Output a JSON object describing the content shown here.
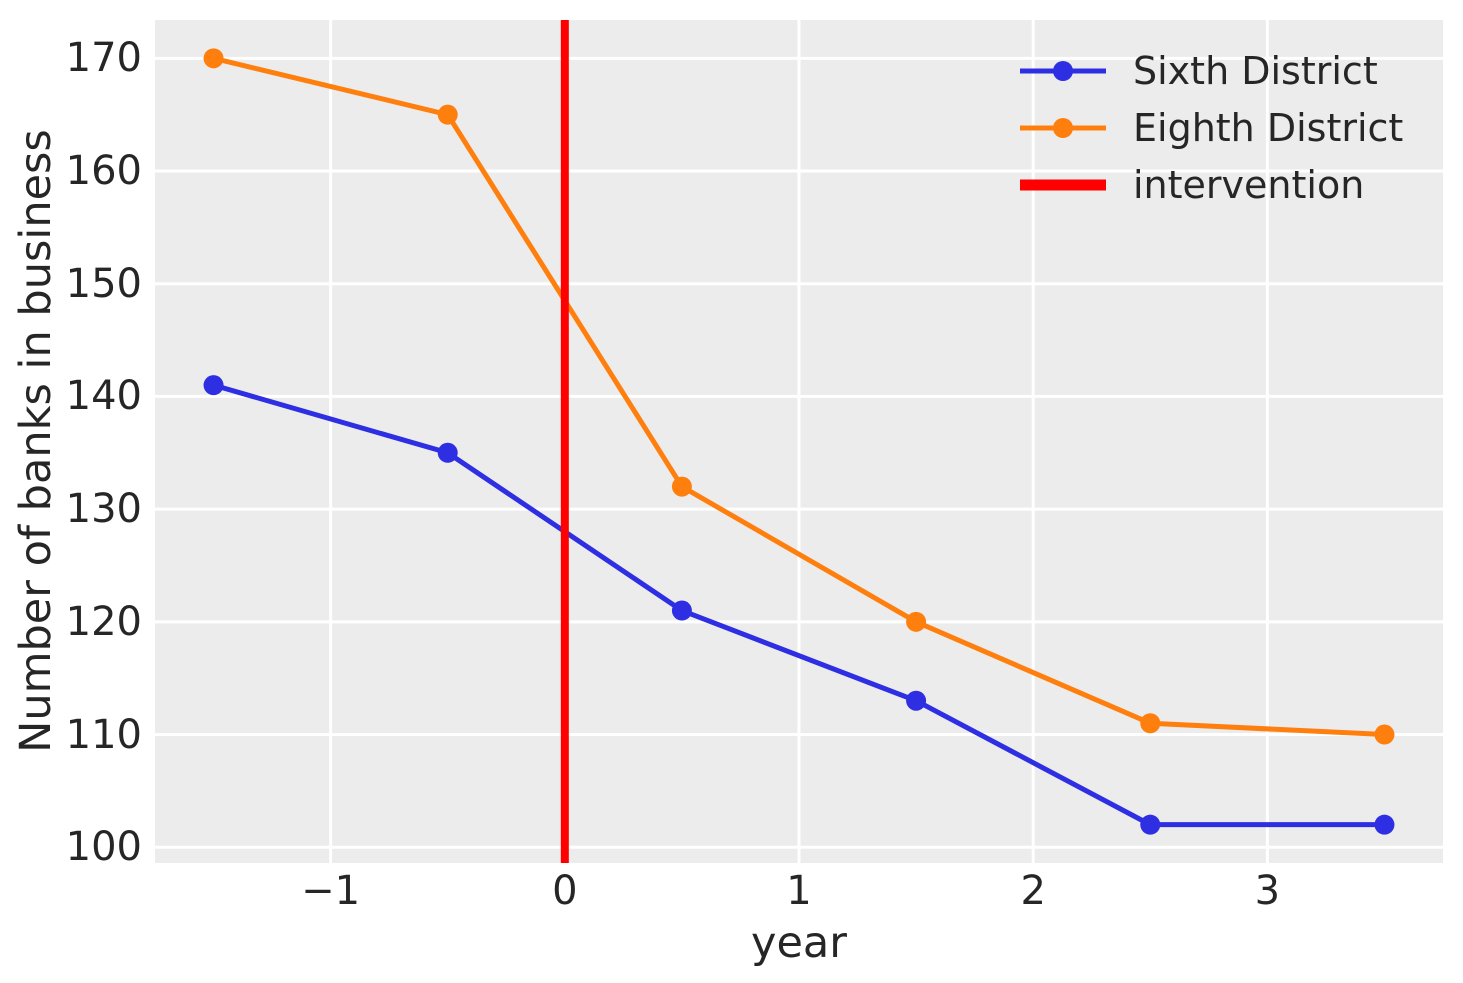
{
  "figure": {
    "background": "#ffffff",
    "plot_background": "#ececec",
    "grid_color": "#ffffff",
    "text_color": "#262626"
  },
  "chart_data": {
    "type": "line",
    "title": "",
    "xlabel": "year",
    "ylabel": "Number of banks in business",
    "x": [
      -1.5,
      -0.5,
      0.5,
      1.5,
      2.5,
      3.5
    ],
    "series": [
      {
        "name": "Sixth District",
        "color": "#2e2ee2",
        "values": [
          141,
          135,
          121,
          113,
          102,
          102
        ]
      },
      {
        "name": "Eighth District",
        "color": "#ff7f0e",
        "values": [
          170,
          165,
          132,
          120,
          111,
          110
        ]
      }
    ],
    "intervention_line": {
      "label": "intervention",
      "x": 0,
      "color": "#ff0000"
    },
    "xticks": [
      -1,
      0,
      1,
      2,
      3
    ],
    "xtick_labels": [
      "−1",
      "0",
      "1",
      "2",
      "3"
    ],
    "yticks": [
      100,
      110,
      120,
      130,
      140,
      150,
      160,
      170
    ],
    "ytick_labels": [
      "100",
      "110",
      "120",
      "130",
      "140",
      "150",
      "160",
      "170"
    ],
    "xlim": [
      -1.75,
      3.75
    ],
    "ylim": [
      98.6,
      173.4
    ],
    "grid": true,
    "legend_position": "upper right",
    "line_width": 5,
    "marker_radius": 10,
    "intervention_line_width": 8
  },
  "legend": {
    "items": [
      {
        "label": "Sixth District",
        "color": "#2e2ee2",
        "style": "line-marker"
      },
      {
        "label": "Eighth District",
        "color": "#ff7f0e",
        "style": "line-marker"
      },
      {
        "label": "intervention",
        "color": "#ff0000",
        "style": "thick-line"
      }
    ]
  }
}
